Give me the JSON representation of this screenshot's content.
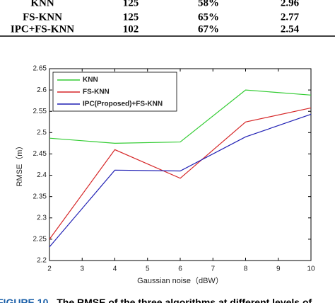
{
  "table": {
    "rows": [
      [
        "KNN",
        "125",
        "58%",
        "2.96"
      ],
      [
        "FS-KNN",
        "125",
        "65%",
        "2.77"
      ],
      [
        "IPC+FS-KNN",
        "102",
        "67%",
        "2.54"
      ]
    ]
  },
  "chart_data": {
    "type": "line",
    "xlabel": "Gaussian noise（dBW）",
    "ylabel": "RMSE（m）",
    "x": [
      2,
      4,
      6,
      8,
      10
    ],
    "series": [
      {
        "name": "KNN",
        "color": "#33cc33",
        "values": [
          2.487,
          2.475,
          2.478,
          2.6,
          2.588
        ]
      },
      {
        "name": "FS-KNN",
        "color": "#d62728",
        "values": [
          2.25,
          2.46,
          2.393,
          2.525,
          2.558
        ]
      },
      {
        "name": "IPC(Proposed)+FS-KNN",
        "color": "#1f1fb4",
        "values": [
          2.232,
          2.412,
          2.41,
          2.49,
          2.543
        ]
      }
    ],
    "xlim": [
      2,
      10
    ],
    "xticks": [
      2,
      3,
      4,
      5,
      6,
      7,
      8,
      9,
      10
    ],
    "ylim": [
      2.2,
      2.65
    ],
    "yticks": [
      2.2,
      2.25,
      2.3,
      2.35,
      2.4,
      2.45,
      2.5,
      2.55,
      2.6,
      2.65
    ],
    "legend": "upper left"
  },
  "caption": {
    "label": "FIGURE 10.",
    "text": "The RMSE of the three algorithms at different levels of"
  }
}
